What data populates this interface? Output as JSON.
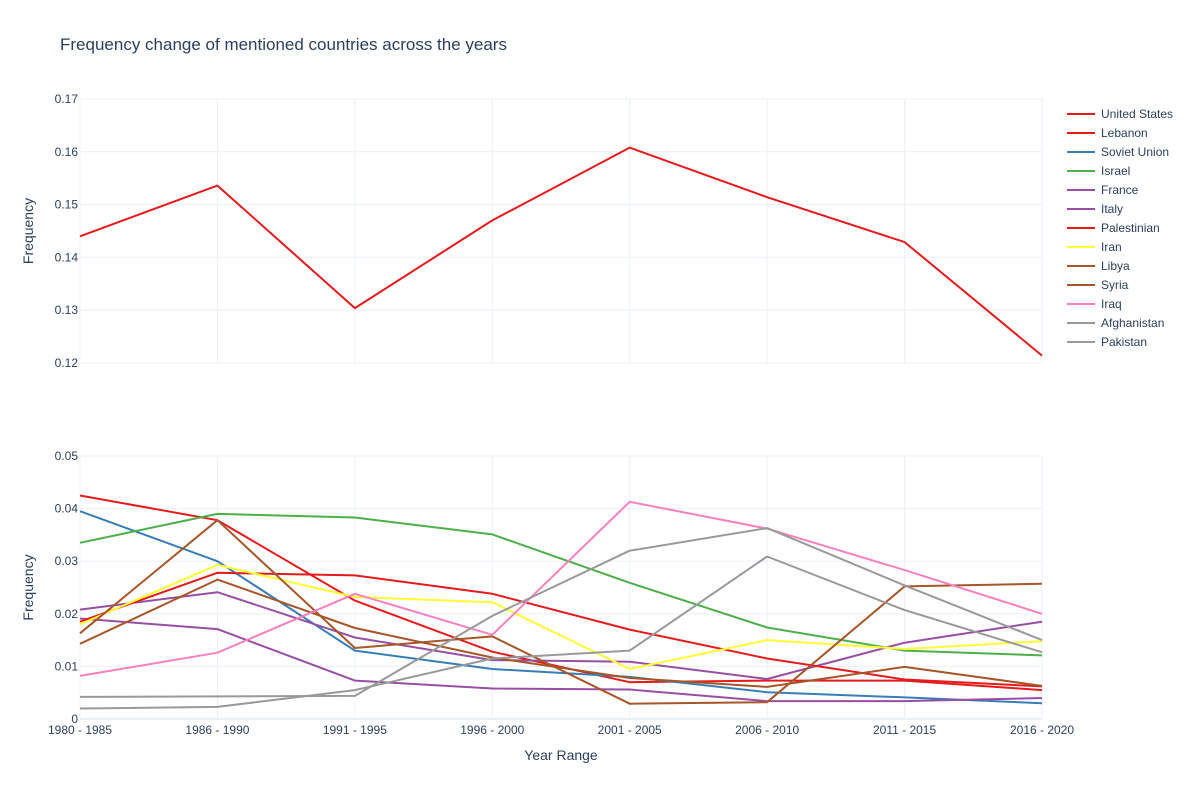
{
  "chart_data": {
    "type": "line",
    "title": "Frequency change of mentioned countries across the years",
    "xlabel": "Year Range",
    "categories": [
      "1980 - 1985",
      "1986 - 1990",
      "1991 - 1995",
      "1996 - 2000",
      "2001 - 2005",
      "2006 - 2010",
      "2011 - 2015",
      "2016 - 2020"
    ],
    "legend_position": "right",
    "grid": true,
    "panels": [
      {
        "ylabel": "Frequency",
        "ylim": [
          0.12,
          0.17
        ],
        "yticks": [
          "0.12",
          "0.13",
          "0.14",
          "0.15",
          "0.16",
          "0.17"
        ],
        "series_names": [
          "United States"
        ]
      },
      {
        "ylabel": "Frequency",
        "ylim": [
          0,
          0.05
        ],
        "yticks": [
          "0",
          "0.01",
          "0.02",
          "0.03",
          "0.04",
          "0.05"
        ],
        "series_names": [
          "Lebanon",
          "Soviet Union",
          "Israel",
          "France",
          "Italy",
          "Palestinian",
          "Iran",
          "Libya",
          "Syria",
          "Iraq",
          "Afghanistan",
          "Pakistan"
        ]
      }
    ],
    "series": [
      {
        "name": "United States",
        "color": "#e41a1c",
        "panel": 0,
        "values": [
          0.144,
          0.1536,
          0.1304,
          0.147,
          0.1608,
          0.1514,
          0.1429,
          0.1214
        ]
      },
      {
        "name": "Lebanon",
        "color": "#e41a1c",
        "panel": 1,
        "values": [
          0.0425,
          0.0378,
          0.0225,
          0.0128,
          0.007,
          0.0073,
          0.0073,
          0.0055
        ]
      },
      {
        "name": "Soviet Union",
        "color": "#377eb8",
        "panel": 1,
        "values": [
          0.0395,
          0.03,
          0.013,
          0.0095,
          0.008,
          0.0051,
          0.0041,
          0.003
        ]
      },
      {
        "name": "Israel",
        "color": "#4daf4a",
        "panel": 1,
        "values": [
          0.0335,
          0.039,
          0.0383,
          0.0351,
          0.0259,
          0.0174,
          0.013,
          0.0121
        ]
      },
      {
        "name": "France",
        "color": "#984ea3",
        "panel": 1,
        "values": [
          0.0208,
          0.0241,
          0.0155,
          0.0112,
          0.0109,
          0.0076,
          0.0145,
          0.0185
        ]
      },
      {
        "name": "Italy",
        "color": "#984ea3",
        "panel": 1,
        "values": [
          0.0191,
          0.0171,
          0.0073,
          0.0058,
          0.0056,
          0.0034,
          0.0034,
          0.004
        ]
      },
      {
        "name": "Palestinian",
        "color": "#e41a1c",
        "panel": 1,
        "values": [
          0.0185,
          0.0278,
          0.0273,
          0.0238,
          0.017,
          0.0115,
          0.0075,
          0.0062
        ]
      },
      {
        "name": "Iran",
        "color": "#ffff33",
        "panel": 1,
        "values": [
          0.018,
          0.0293,
          0.0232,
          0.0222,
          0.0095,
          0.015,
          0.0133,
          0.0148
        ]
      },
      {
        "name": "Libya",
        "color": "#a65628",
        "panel": 1,
        "values": [
          0.0163,
          0.0378,
          0.0135,
          0.0157,
          0.0029,
          0.0032,
          0.0252,
          0.0257
        ]
      },
      {
        "name": "Syria",
        "color": "#a65628",
        "panel": 1,
        "values": [
          0.0143,
          0.0265,
          0.0173,
          0.0117,
          0.0078,
          0.0061,
          0.0099,
          0.0063
        ]
      },
      {
        "name": "Iraq",
        "color": "#f781bf",
        "panel": 1,
        "values": [
          0.0082,
          0.0126,
          0.0238,
          0.016,
          0.0413,
          0.0362,
          0.0283,
          0.02
        ]
      },
      {
        "name": "Afghanistan",
        "color": "#999999",
        "panel": 1,
        "values": [
          0.0042,
          0.0043,
          0.0044,
          0.0196,
          0.032,
          0.0363,
          0.0254,
          0.015
        ]
      },
      {
        "name": "Pakistan",
        "color": "#999999",
        "panel": 1,
        "values": [
          0.002,
          0.0023,
          0.0055,
          0.0115,
          0.013,
          0.0309,
          0.0207,
          0.0127
        ]
      }
    ]
  }
}
